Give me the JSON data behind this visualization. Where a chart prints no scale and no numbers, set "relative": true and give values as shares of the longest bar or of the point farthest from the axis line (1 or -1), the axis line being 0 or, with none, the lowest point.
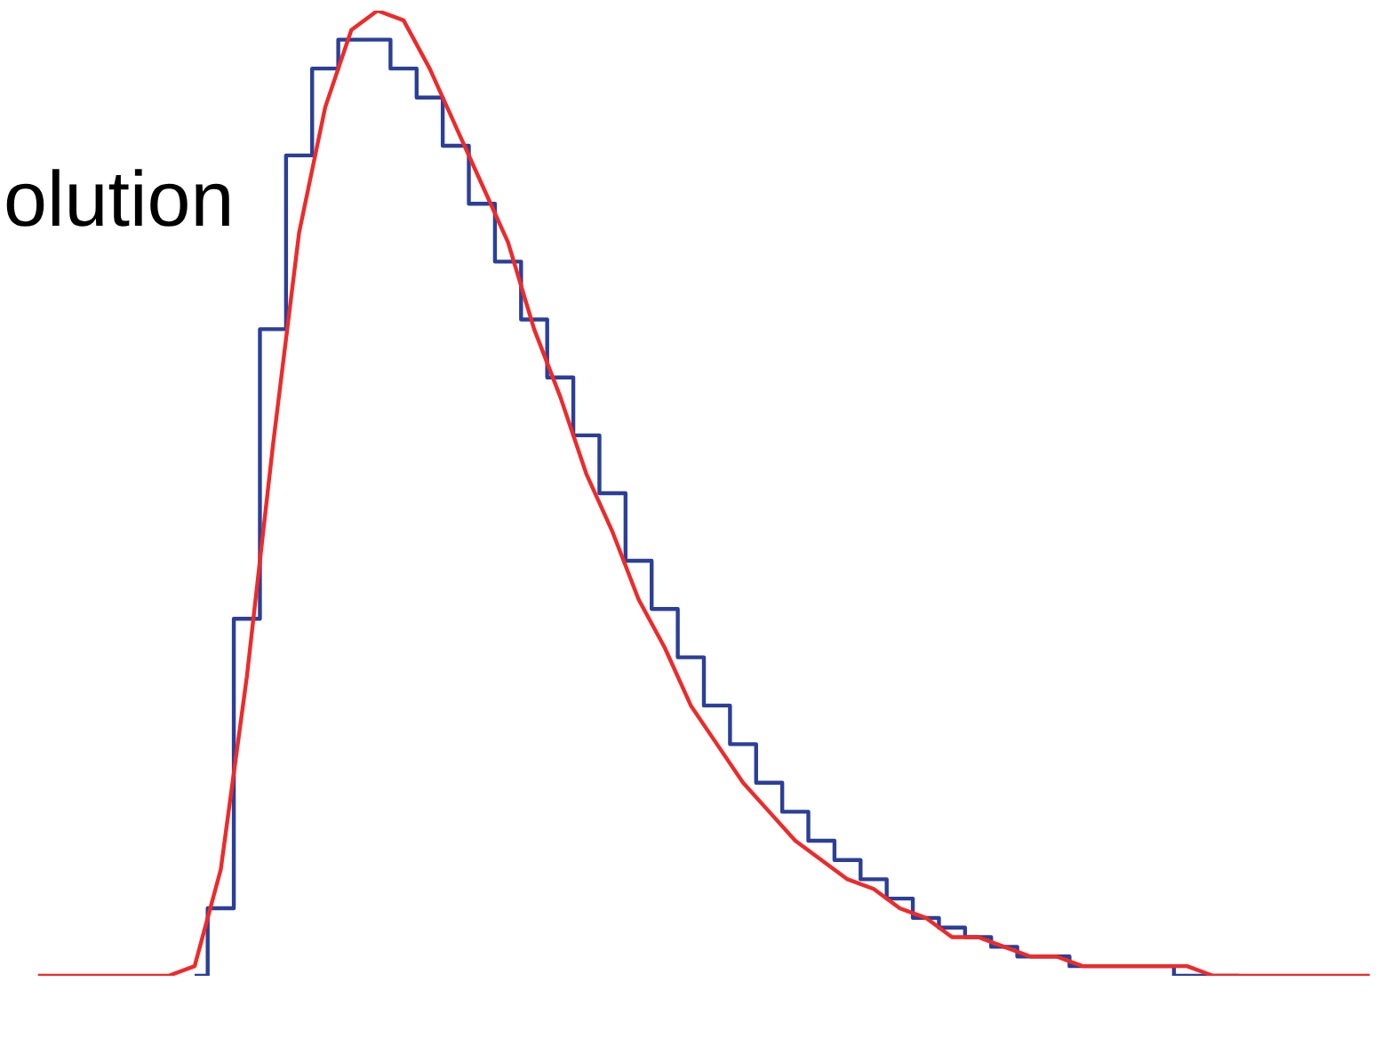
{
  "chart_data": {
    "type": "step",
    "relative": true,
    "annotations": [
      "olution"
    ],
    "categories": [
      null,
      null,
      null,
      null,
      null,
      null,
      null,
      null,
      null,
      null,
      null,
      null,
      null,
      null,
      null,
      null,
      null,
      null,
      null,
      null,
      null,
      null,
      null,
      null,
      null,
      null,
      null,
      null,
      null,
      null,
      null,
      null,
      null,
      null,
      null,
      null,
      null,
      null,
      null,
      null,
      null,
      null,
      null,
      null,
      null,
      null,
      null,
      null,
      null,
      null,
      null,
      null
    ],
    "series": [
      {
        "color": "#2b3f99",
        "values": [
          null,
          null,
          null,
          null,
          null,
          null,
          0,
          0.07,
          0.37,
          0.67,
          0.85,
          0.94,
          0.97,
          0.97,
          0.94,
          0.91,
          0.86,
          0.8,
          0.74,
          0.68,
          0.62,
          0.56,
          0.5,
          0.43,
          0.38,
          0.33,
          0.28,
          0.24,
          0.2,
          0.17,
          0.14,
          0.12,
          0.1,
          0.08,
          0.06,
          0.05,
          0.04,
          0.03,
          0.02,
          0.02,
          0.01,
          0.01,
          0.01,
          0.01,
          0,
          0,
          0,
          null,
          null,
          null,
          null,
          null
        ]
      },
      {
        "type": "line",
        "color": "#ee2a2a",
        "values": [
          0,
          0,
          0,
          0,
          0,
          0,
          0.01,
          0.11,
          0.31,
          0.55,
          0.77,
          0.9,
          0.98,
          1,
          0.99,
          0.94,
          0.88,
          0.82,
          0.76,
          0.67,
          0.6,
          0.52,
          0.46,
          0.39,
          0.34,
          0.28,
          0.24,
          0.2,
          0.17,
          0.14,
          0.12,
          0.1,
          0.09,
          0.07,
          0.06,
          0.04,
          0.04,
          0.03,
          0.02,
          0.02,
          0.01,
          0.01,
          0.01,
          0.01,
          0.01,
          0,
          0,
          0,
          0,
          0,
          0,
          0
        ]
      }
    ]
  }
}
